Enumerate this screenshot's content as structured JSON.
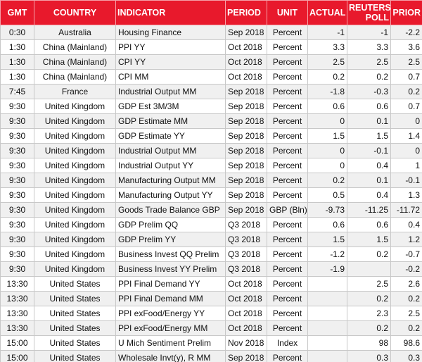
{
  "table": {
    "headers": [
      "GMT",
      "COUNTRY",
      "INDICATOR",
      "PERIOD",
      "UNIT",
      "ACTUAL",
      "REUTERS POLL",
      "PRIOR"
    ],
    "rows": [
      [
        "0:30",
        "Australia",
        "Housing Finance",
        "Sep 2018",
        "Percent",
        "-1",
        "-1",
        "-2.2"
      ],
      [
        "1:30",
        "China (Mainland)",
        "PPI YY",
        "Oct 2018",
        "Percent",
        "3.3",
        "3.3",
        "3.6"
      ],
      [
        "1:30",
        "China (Mainland)",
        "CPI YY",
        "Oct 2018",
        "Percent",
        "2.5",
        "2.5",
        "2.5"
      ],
      [
        "1:30",
        "China (Mainland)",
        "CPI MM",
        "Oct 2018",
        "Percent",
        "0.2",
        "0.2",
        "0.7"
      ],
      [
        "7:45",
        "France",
        "Industrial Output MM",
        "Sep 2018",
        "Percent",
        "-1.8",
        "-0.3",
        "0.2"
      ],
      [
        "9:30",
        "United Kingdom",
        "GDP Est 3M/3M",
        "Sep 2018",
        "Percent",
        "0.6",
        "0.6",
        "0.7"
      ],
      [
        "9:30",
        "United Kingdom",
        "GDP Estimate MM",
        "Sep 2018",
        "Percent",
        "0",
        "0.1",
        "0"
      ],
      [
        "9:30",
        "United Kingdom",
        "GDP Estimate YY",
        "Sep 2018",
        "Percent",
        "1.5",
        "1.5",
        "1.4"
      ],
      [
        "9:30",
        "United Kingdom",
        "Industrial Output MM",
        "Sep 2018",
        "Percent",
        "0",
        "-0.1",
        "0"
      ],
      [
        "9:30",
        "United Kingdom",
        "Industrial Output YY",
        "Sep 2018",
        "Percent",
        "0",
        "0.4",
        "1"
      ],
      [
        "9:30",
        "United Kingdom",
        "Manufacturing Output MM",
        "Sep 2018",
        "Percent",
        "0.2",
        "0.1",
        "-0.1"
      ],
      [
        "9:30",
        "United Kingdom",
        "Manufacturing Output YY",
        "Sep 2018",
        "Percent",
        "0.5",
        "0.4",
        "1.3"
      ],
      [
        "9:30",
        "United Kingdom",
        "Goods Trade Balance GBP",
        "Sep 2018",
        "GBP (Bln)",
        "-9.73",
        "-11.25",
        "-11.72"
      ],
      [
        "9:30",
        "United Kingdom",
        "GDP Prelim QQ",
        "Q3 2018",
        "Percent",
        "0.6",
        "0.6",
        "0.4"
      ],
      [
        "9:30",
        "United Kingdom",
        "GDP Prelim YY",
        "Q3 2018",
        "Percent",
        "1.5",
        "1.5",
        "1.2"
      ],
      [
        "9:30",
        "United Kingdom",
        "Business Invest QQ Prelim",
        "Q3 2018",
        "Percent",
        "-1.2",
        "0.2",
        "-0.7"
      ],
      [
        "9:30",
        "United Kingdom",
        "Business Invest YY Prelim",
        "Q3 2018",
        "Percent",
        "-1.9",
        null,
        "-0.2"
      ],
      [
        "13:30",
        "United States",
        "PPI Final Demand YY",
        "Oct 2018",
        "Percent",
        null,
        "2.5",
        "2.6"
      ],
      [
        "13:30",
        "United States",
        "PPI Final Demand MM",
        "Oct 2018",
        "Percent",
        null,
        "0.2",
        "0.2"
      ],
      [
        "13:30",
        "United States",
        "PPI exFood/Energy YY",
        "Oct 2018",
        "Percent",
        null,
        "2.3",
        "2.5"
      ],
      [
        "13:30",
        "United States",
        "PPI exFood/Energy MM",
        "Oct 2018",
        "Percent",
        null,
        "0.2",
        "0.2"
      ],
      [
        "15:00",
        "United States",
        "U Mich Sentiment Prelim",
        "Nov 2018",
        "Index",
        null,
        "98",
        "98.6"
      ],
      [
        "15:00",
        "United States",
        "Wholesale Invt(y), R MM",
        "Sep 2018",
        "Percent",
        null,
        "0.3",
        "0.3"
      ]
    ]
  }
}
